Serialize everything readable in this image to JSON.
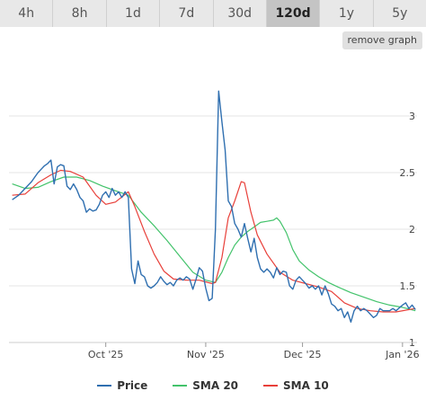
{
  "tabs": [
    {
      "label": "4h",
      "active": false
    },
    {
      "label": "8h",
      "active": false
    },
    {
      "label": "1d",
      "active": false
    },
    {
      "label": "7d",
      "active": false
    },
    {
      "label": "30d",
      "active": false
    },
    {
      "label": "120d",
      "active": true
    },
    {
      "label": "1y",
      "active": false
    },
    {
      "label": "5y",
      "active": false
    }
  ],
  "remove_graph_label": "remove graph",
  "chart_data": {
    "type": "line",
    "x_type": "date",
    "ylim": [
      1,
      3.5
    ],
    "yticks": [
      1,
      1.5,
      2,
      2.5,
      3
    ],
    "xticks": [
      {
        "date": "2025-10-01",
        "label": "Oct '25"
      },
      {
        "date": "2025-11-01",
        "label": "Nov '25"
      },
      {
        "date": "2025-12-01",
        "label": "Dec '25"
      },
      {
        "date": "2026-01-01",
        "label": "Jan '26"
      }
    ],
    "grid": true,
    "legend_position": "bottom",
    "series": [
      {
        "name": "Price",
        "color": "#2f6fb0",
        "points": [
          [
            "2025-09-02",
            2.26
          ],
          [
            "2025-09-03",
            2.28
          ],
          [
            "2025-09-04",
            2.3
          ],
          [
            "2025-09-05",
            2.33
          ],
          [
            "2025-09-06",
            2.36
          ],
          [
            "2025-09-07",
            2.39
          ],
          [
            "2025-09-08",
            2.42
          ],
          [
            "2025-09-09",
            2.46
          ],
          [
            "2025-09-10",
            2.5
          ],
          [
            "2025-09-11",
            2.53
          ],
          [
            "2025-09-12",
            2.56
          ],
          [
            "2025-09-13",
            2.58
          ],
          [
            "2025-09-14",
            2.61
          ],
          [
            "2025-09-15",
            2.4
          ],
          [
            "2025-09-16",
            2.55
          ],
          [
            "2025-09-17",
            2.57
          ],
          [
            "2025-09-18",
            2.56
          ],
          [
            "2025-09-19",
            2.38
          ],
          [
            "2025-09-20",
            2.35
          ],
          [
            "2025-09-21",
            2.4
          ],
          [
            "2025-09-22",
            2.35
          ],
          [
            "2025-09-23",
            2.28
          ],
          [
            "2025-09-24",
            2.25
          ],
          [
            "2025-09-25",
            2.15
          ],
          [
            "2025-09-26",
            2.18
          ],
          [
            "2025-09-27",
            2.16
          ],
          [
            "2025-09-28",
            2.17
          ],
          [
            "2025-09-29",
            2.22
          ],
          [
            "2025-09-30",
            2.3
          ],
          [
            "2025-10-01",
            2.33
          ],
          [
            "2025-10-02",
            2.28
          ],
          [
            "2025-10-03",
            2.36
          ],
          [
            "2025-10-04",
            2.3
          ],
          [
            "2025-10-05",
            2.33
          ],
          [
            "2025-10-06",
            2.28
          ],
          [
            "2025-10-07",
            2.33
          ],
          [
            "2025-10-08",
            2.28
          ],
          [
            "2025-10-09",
            1.65
          ],
          [
            "2025-10-10",
            1.52
          ],
          [
            "2025-10-11",
            1.72
          ],
          [
            "2025-10-12",
            1.6
          ],
          [
            "2025-10-13",
            1.58
          ],
          [
            "2025-10-14",
            1.5
          ],
          [
            "2025-10-15",
            1.48
          ],
          [
            "2025-10-16",
            1.5
          ],
          [
            "2025-10-17",
            1.53
          ],
          [
            "2025-10-18",
            1.58
          ],
          [
            "2025-10-19",
            1.54
          ],
          [
            "2025-10-20",
            1.51
          ],
          [
            "2025-10-21",
            1.53
          ],
          [
            "2025-10-22",
            1.5
          ],
          [
            "2025-10-23",
            1.55
          ],
          [
            "2025-10-24",
            1.57
          ],
          [
            "2025-10-25",
            1.55
          ],
          [
            "2025-10-26",
            1.58
          ],
          [
            "2025-10-27",
            1.56
          ],
          [
            "2025-10-28",
            1.47
          ],
          [
            "2025-10-29",
            1.56
          ],
          [
            "2025-10-30",
            1.66
          ],
          [
            "2025-10-31",
            1.63
          ],
          [
            "2025-11-01",
            1.48
          ],
          [
            "2025-11-02",
            1.37
          ],
          [
            "2025-11-03",
            1.39
          ],
          [
            "2025-11-04",
            2.0
          ],
          [
            "2025-11-05",
            3.22
          ],
          [
            "2025-11-06",
            2.95
          ],
          [
            "2025-11-07",
            2.7
          ],
          [
            "2025-11-08",
            2.25
          ],
          [
            "2025-11-09",
            2.2
          ],
          [
            "2025-11-10",
            2.05
          ],
          [
            "2025-11-11",
            2.0
          ],
          [
            "2025-11-12",
            1.93
          ],
          [
            "2025-11-13",
            2.05
          ],
          [
            "2025-11-14",
            1.92
          ],
          [
            "2025-11-15",
            1.8
          ],
          [
            "2025-11-16",
            1.92
          ],
          [
            "2025-11-17",
            1.75
          ],
          [
            "2025-11-18",
            1.65
          ],
          [
            "2025-11-19",
            1.62
          ],
          [
            "2025-11-20",
            1.65
          ],
          [
            "2025-11-21",
            1.62
          ],
          [
            "2025-11-22",
            1.57
          ],
          [
            "2025-11-23",
            1.66
          ],
          [
            "2025-11-24",
            1.6
          ],
          [
            "2025-11-25",
            1.63
          ],
          [
            "2025-11-26",
            1.62
          ],
          [
            "2025-11-27",
            1.5
          ],
          [
            "2025-11-28",
            1.47
          ],
          [
            "2025-11-29",
            1.55
          ],
          [
            "2025-11-30",
            1.58
          ],
          [
            "2025-12-01",
            1.55
          ],
          [
            "2025-12-02",
            1.52
          ],
          [
            "2025-12-03",
            1.48
          ],
          [
            "2025-12-04",
            1.5
          ],
          [
            "2025-12-05",
            1.47
          ],
          [
            "2025-12-06",
            1.5
          ],
          [
            "2025-12-07",
            1.42
          ],
          [
            "2025-12-08",
            1.5
          ],
          [
            "2025-12-09",
            1.43
          ],
          [
            "2025-12-10",
            1.34
          ],
          [
            "2025-12-11",
            1.32
          ],
          [
            "2025-12-12",
            1.28
          ],
          [
            "2025-12-13",
            1.3
          ],
          [
            "2025-12-14",
            1.22
          ],
          [
            "2025-12-15",
            1.27
          ],
          [
            "2025-12-16",
            1.18
          ],
          [
            "2025-12-17",
            1.28
          ],
          [
            "2025-12-18",
            1.32
          ],
          [
            "2025-12-19",
            1.28
          ],
          [
            "2025-12-20",
            1.3
          ],
          [
            "2025-12-21",
            1.28
          ],
          [
            "2025-12-22",
            1.25
          ],
          [
            "2025-12-23",
            1.22
          ],
          [
            "2025-12-24",
            1.24
          ],
          [
            "2025-12-25",
            1.3
          ],
          [
            "2025-12-26",
            1.28
          ],
          [
            "2025-12-27",
            1.28
          ],
          [
            "2025-12-28",
            1.28
          ],
          [
            "2025-12-29",
            1.3
          ],
          [
            "2025-12-30",
            1.28
          ],
          [
            "2026-01-01",
            1.33
          ],
          [
            "2026-01-02",
            1.35
          ],
          [
            "2026-01-03",
            1.3
          ],
          [
            "2026-01-04",
            1.33
          ],
          [
            "2026-01-05",
            1.29
          ]
        ]
      },
      {
        "name": "SMA 20",
        "color": "#43c36b",
        "points": [
          [
            "2025-09-02",
            2.4
          ],
          [
            "2025-09-06",
            2.36
          ],
          [
            "2025-09-10",
            2.37
          ],
          [
            "2025-09-14",
            2.42
          ],
          [
            "2025-09-18",
            2.46
          ],
          [
            "2025-09-22",
            2.46
          ],
          [
            "2025-09-26",
            2.43
          ],
          [
            "2025-09-30",
            2.38
          ],
          [
            "2025-10-04",
            2.34
          ],
          [
            "2025-10-08",
            2.3
          ],
          [
            "2025-10-12",
            2.15
          ],
          [
            "2025-10-16",
            2.03
          ],
          [
            "2025-10-20",
            1.9
          ],
          [
            "2025-10-24",
            1.76
          ],
          [
            "2025-10-28",
            1.62
          ],
          [
            "2025-11-01",
            1.55
          ],
          [
            "2025-11-04",
            1.53
          ],
          [
            "2025-11-06",
            1.62
          ],
          [
            "2025-11-08",
            1.75
          ],
          [
            "2025-11-10",
            1.86
          ],
          [
            "2025-11-12",
            1.93
          ],
          [
            "2025-11-14",
            1.98
          ],
          [
            "2025-11-16",
            2.02
          ],
          [
            "2025-11-18",
            2.06
          ],
          [
            "2025-11-20",
            2.07
          ],
          [
            "2025-11-22",
            2.08
          ],
          [
            "2025-11-23",
            2.1
          ],
          [
            "2025-11-24",
            2.07
          ],
          [
            "2025-11-26",
            1.97
          ],
          [
            "2025-11-28",
            1.82
          ],
          [
            "2025-11-30",
            1.72
          ],
          [
            "2025-12-03",
            1.64
          ],
          [
            "2025-12-06",
            1.58
          ],
          [
            "2025-12-09",
            1.53
          ],
          [
            "2025-12-12",
            1.49
          ],
          [
            "2025-12-16",
            1.44
          ],
          [
            "2025-12-20",
            1.4
          ],
          [
            "2025-12-24",
            1.36
          ],
          [
            "2025-12-28",
            1.33
          ],
          [
            "2026-01-01",
            1.31
          ],
          [
            "2026-01-05",
            1.28
          ]
        ]
      },
      {
        "name": "SMA 10",
        "color": "#e8403a",
        "points": [
          [
            "2025-09-02",
            2.3
          ],
          [
            "2025-09-06",
            2.31
          ],
          [
            "2025-09-10",
            2.41
          ],
          [
            "2025-09-14",
            2.48
          ],
          [
            "2025-09-17",
            2.52
          ],
          [
            "2025-09-20",
            2.51
          ],
          [
            "2025-09-24",
            2.46
          ],
          [
            "2025-09-28",
            2.3
          ],
          [
            "2025-10-01",
            2.22
          ],
          [
            "2025-10-04",
            2.24
          ],
          [
            "2025-10-08",
            2.33
          ],
          [
            "2025-10-10",
            2.2
          ],
          [
            "2025-10-13",
            1.98
          ],
          [
            "2025-10-16",
            1.78
          ],
          [
            "2025-10-19",
            1.63
          ],
          [
            "2025-10-22",
            1.56
          ],
          [
            "2025-10-26",
            1.55
          ],
          [
            "2025-10-30",
            1.55
          ],
          [
            "2025-11-03",
            1.52
          ],
          [
            "2025-11-04",
            1.53
          ],
          [
            "2025-11-06",
            1.75
          ],
          [
            "2025-11-08",
            2.1
          ],
          [
            "2025-11-10",
            2.25
          ],
          [
            "2025-11-12",
            2.42
          ],
          [
            "2025-11-13",
            2.41
          ],
          [
            "2025-11-15",
            2.15
          ],
          [
            "2025-11-17",
            1.95
          ],
          [
            "2025-11-20",
            1.78
          ],
          [
            "2025-11-24",
            1.62
          ],
          [
            "2025-11-28",
            1.55
          ],
          [
            "2025-12-02",
            1.52
          ],
          [
            "2025-12-06",
            1.49
          ],
          [
            "2025-12-10",
            1.45
          ],
          [
            "2025-12-14",
            1.35
          ],
          [
            "2025-12-18",
            1.3
          ],
          [
            "2025-12-22",
            1.28
          ],
          [
            "2025-12-26",
            1.27
          ],
          [
            "2025-12-30",
            1.27
          ],
          [
            "2026-01-05",
            1.3
          ]
        ]
      }
    ]
  }
}
